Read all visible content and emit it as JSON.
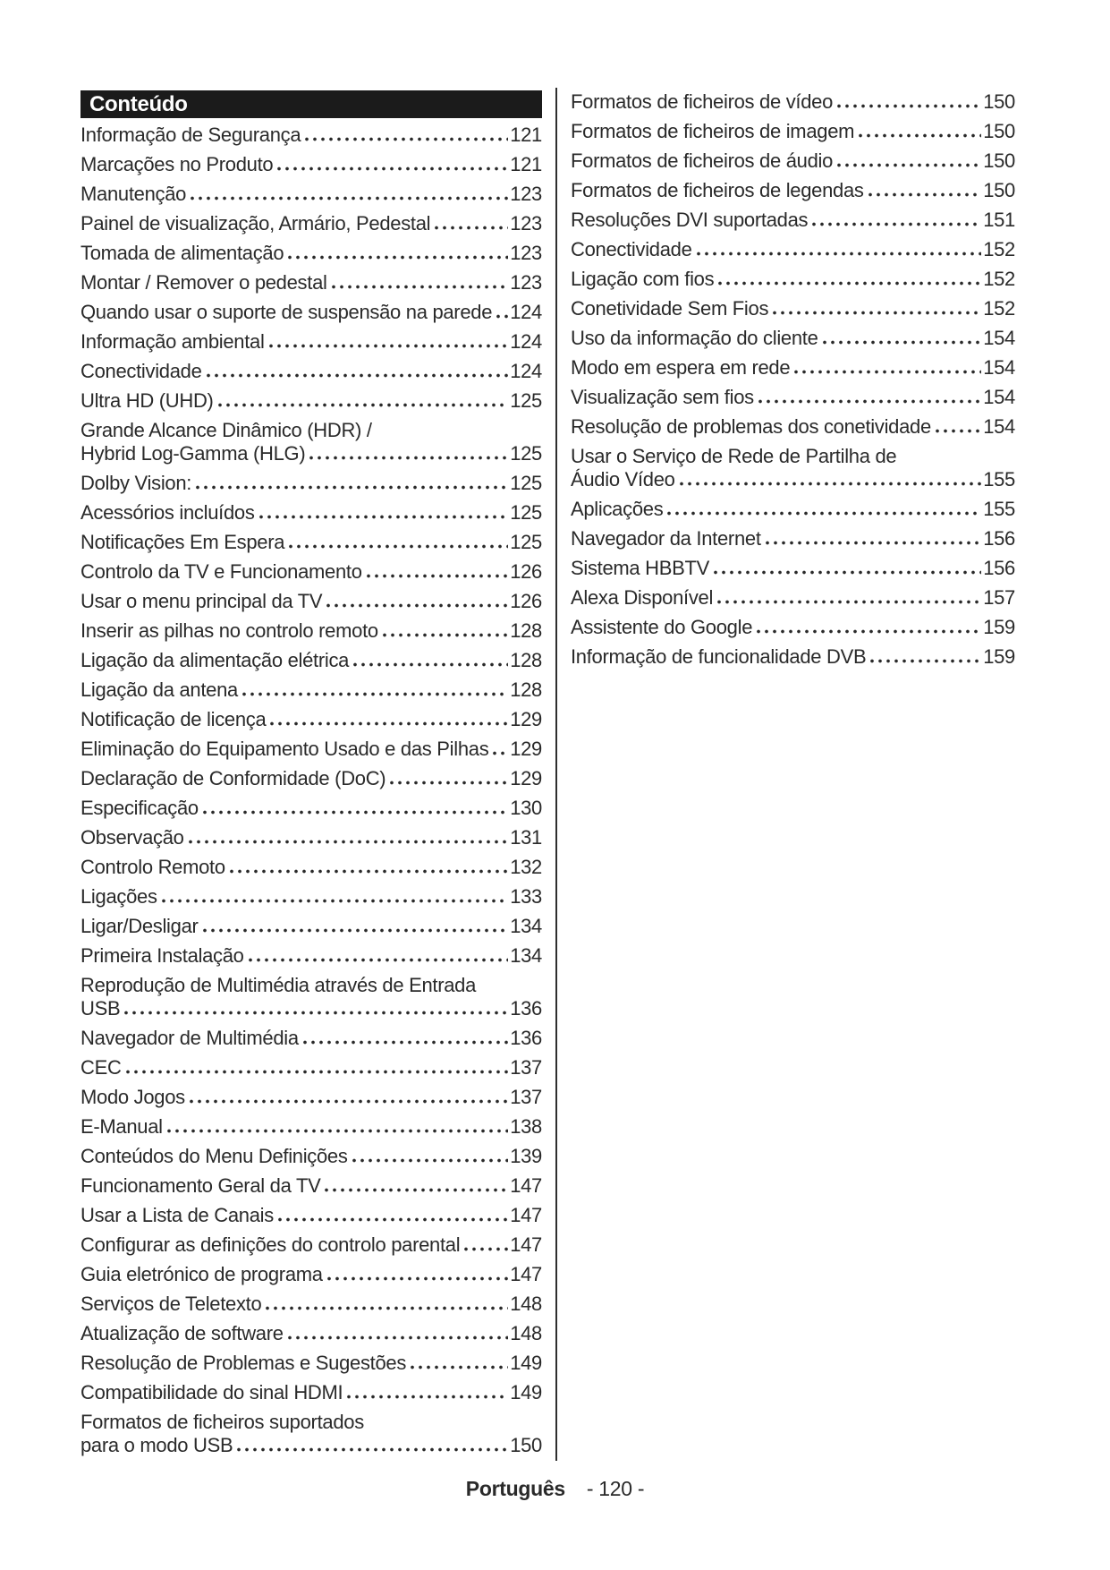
{
  "page": {
    "language_footer": "Português",
    "page_number_footer": "- 120 -"
  },
  "colors": {
    "ink": "#2a2a2a",
    "header_bg": "#1b1b1b",
    "header_text": "#ffffff",
    "divider": "#2e2e2e",
    "paper": "#ffffff"
  },
  "toc": {
    "header": "Conteúdo",
    "columns": {
      "left": [
        {
          "text": "Informação de Segurança",
          "page": "121"
        },
        {
          "text": "Marcações no Produto",
          "page": "121"
        },
        {
          "text": "Manutenção",
          "page": "123"
        },
        {
          "text": "Painel de visualização, Armário, Pedestal",
          "page": "123"
        },
        {
          "text": "Tomada de alimentação",
          "page": "123"
        },
        {
          "text": "Montar / Remover o pedestal",
          "page": "123"
        },
        {
          "text": "Quando usar o suporte de suspensão na parede",
          "page": "124"
        },
        {
          "text": "Informação ambiental",
          "page": "124"
        },
        {
          "text": "Conectividade",
          "page": "124"
        },
        {
          "text": "Ultra HD (UHD)",
          "page": "125"
        },
        {
          "text": "Grande Alcance Dinâmico (HDR) /",
          "cont": true
        },
        {
          "text": "Hybrid Log-Gamma (HLG)",
          "page": "125"
        },
        {
          "text": "Dolby Vision:",
          "page": "125"
        },
        {
          "text": "Acessórios incluídos",
          "page": "125"
        },
        {
          "text": "Notificações Em Espera",
          "page": "125"
        },
        {
          "text": "Controlo da TV e Funcionamento",
          "page": "126"
        },
        {
          "text": "Usar o menu principal da TV",
          "page": "126"
        },
        {
          "text": "Inserir as pilhas no controlo remoto",
          "page": "128"
        },
        {
          "text": "Ligação da alimentação elétrica",
          "page": "128"
        },
        {
          "text": "Ligação da antena",
          "page": "128"
        },
        {
          "text": "Notificação de licença",
          "page": "129"
        },
        {
          "text": "Eliminação do Equipamento Usado e das Pilhas",
          "page": "129"
        },
        {
          "text": "Declaração de Conformidade (DoC)",
          "page": "129"
        },
        {
          "text": "Especificação",
          "page": "130"
        },
        {
          "text": "Observação",
          "page": "131"
        },
        {
          "text": "Controlo Remoto",
          "page": "132"
        },
        {
          "text": "Ligações",
          "page": "133"
        },
        {
          "text": "Ligar/Desligar",
          "page": "134"
        },
        {
          "text": "Primeira Instalação",
          "page": "134"
        },
        {
          "text": "Reprodução de Multimédia através de Entrada",
          "cont": true
        },
        {
          "text": "USB",
          "page": "136"
        },
        {
          "text": "Navegador de Multimédia",
          "page": "136"
        },
        {
          "text": "CEC",
          "page": "137"
        },
        {
          "text": "Modo Jogos",
          "page": "137"
        },
        {
          "text": "E-Manual",
          "page": "138"
        },
        {
          "text": "Conteúdos do Menu Definições",
          "page": "139"
        },
        {
          "text": "Funcionamento Geral da TV",
          "page": "147"
        },
        {
          "text": "Usar a Lista de Canais",
          "page": "147"
        },
        {
          "text": "Configurar as definições do controlo parental",
          "page": "147"
        },
        {
          "text": "Guia eletrónico de programa",
          "page": "147"
        },
        {
          "text": "Serviços de Teletexto",
          "page": "148"
        },
        {
          "text": "Atualização de software",
          "page": "148"
        },
        {
          "text": "Resolução de Problemas e Sugestões",
          "page": "149"
        },
        {
          "text": "Compatibilidade do sinal HDMI",
          "page": "149"
        },
        {
          "text": "Formatos de ficheiros suportados",
          "cont": true
        },
        {
          "text": "para o modo USB",
          "page": "150"
        }
      ],
      "right": [
        {
          "text": "Formatos de ficheiros de vídeo",
          "page": "150"
        },
        {
          "text": "Formatos de ficheiros de imagem",
          "page": "150"
        },
        {
          "text": "Formatos de ficheiros de áudio",
          "page": "150"
        },
        {
          "text": "Formatos de ficheiros de legendas",
          "page": "150"
        },
        {
          "text": "Resoluções DVI suportadas",
          "page": "151"
        },
        {
          "text": "Conectividade",
          "page": "152"
        },
        {
          "text": "Ligação com fios",
          "page": "152"
        },
        {
          "text": "Conetividade Sem Fios",
          "page": "152"
        },
        {
          "text": "Uso da informação do cliente",
          "page": "154"
        },
        {
          "text": "Modo em espera em rede",
          "page": "154"
        },
        {
          "text": "Visualização sem fios",
          "page": "154"
        },
        {
          "text": "Resolução de problemas dos conetividade",
          "page": "154"
        },
        {
          "text": "Usar o Serviço de Rede de Partilha de",
          "cont": true
        },
        {
          "text": "Áudio Vídeo",
          "page": "155"
        },
        {
          "text": "Aplicações",
          "page": "155"
        },
        {
          "text": "Navegador da Internet",
          "page": "156"
        },
        {
          "text": "Sistema HBBTV",
          "page": "156"
        },
        {
          "text": "Alexa Disponível",
          "page": "157"
        },
        {
          "text": "Assistente do Google",
          "page": "159"
        },
        {
          "text": "Informação de funcionalidade DVB",
          "page": "159"
        }
      ]
    }
  }
}
